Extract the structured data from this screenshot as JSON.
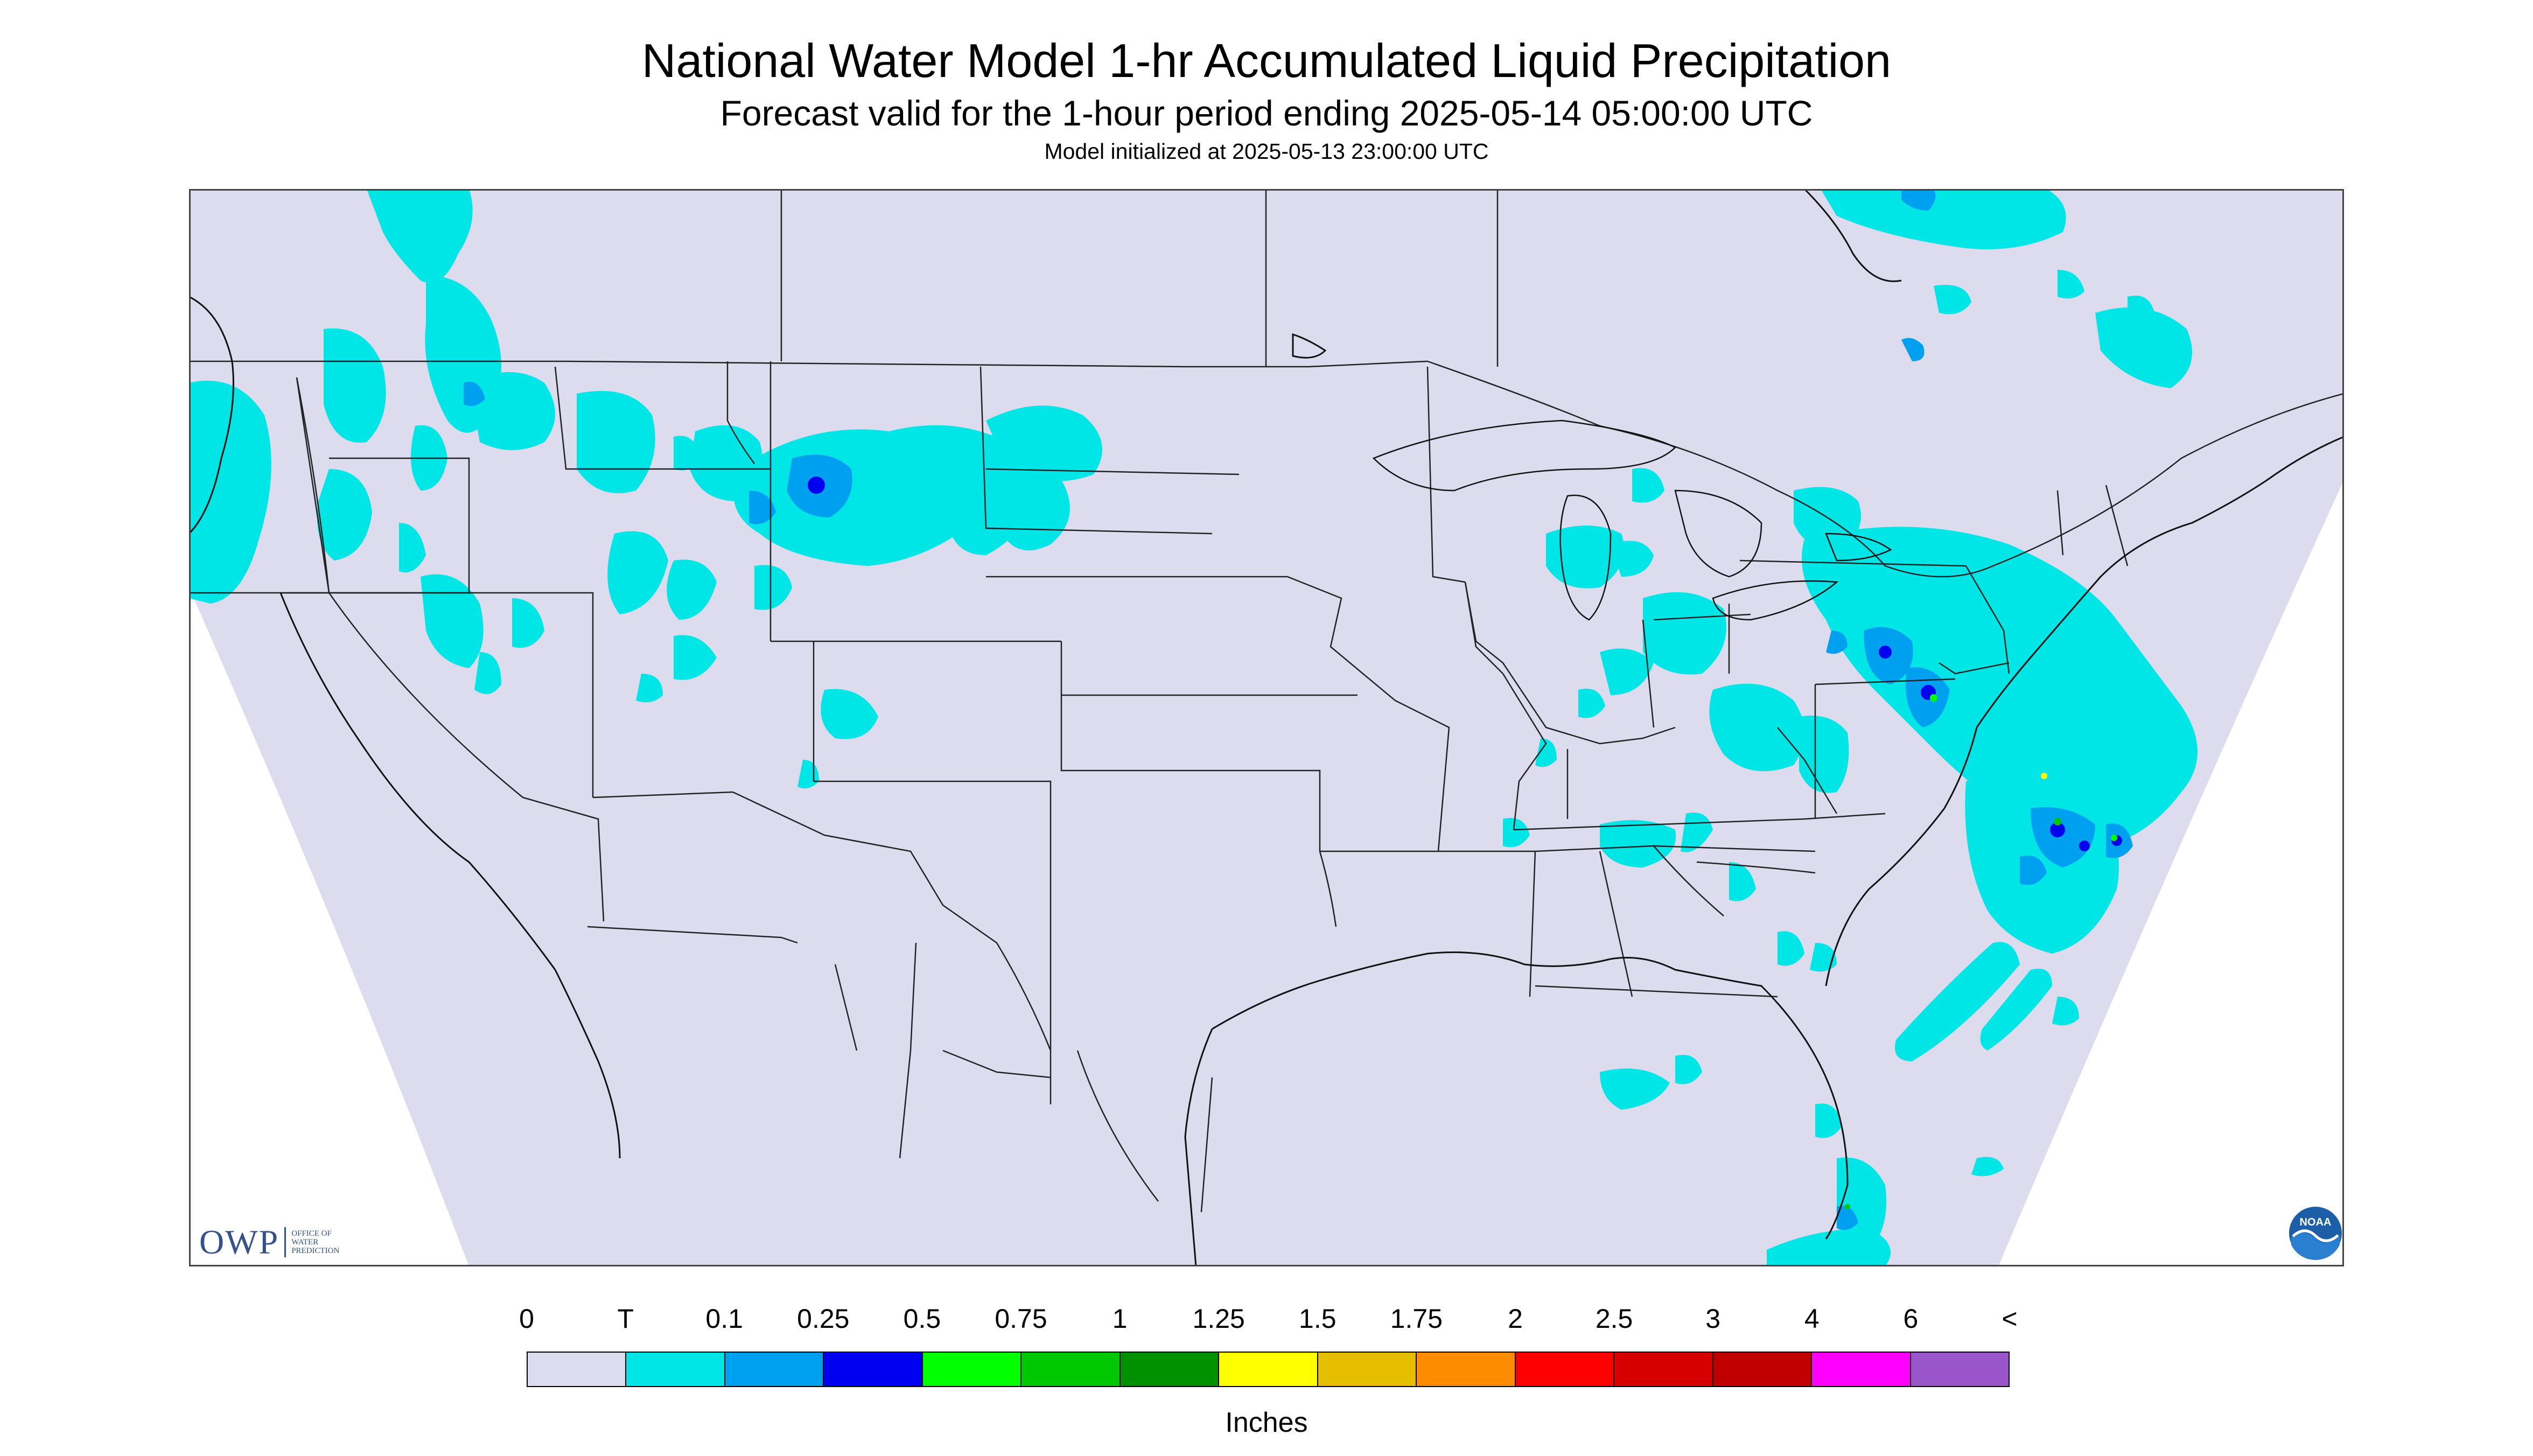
{
  "title": "National Water Model 1-hr Accumulated Liquid Precipitation",
  "subtitle": "Forecast valid for the 1-hour period ending 2025-05-14 05:00:00 UTC",
  "init_line": "Model initialized at 2025-05-13 23:00:00 UTC",
  "legend": {
    "labels": [
      "0",
      "T",
      "0.1",
      "0.25",
      "0.5",
      "0.75",
      "1",
      "1.25",
      "1.5",
      "1.75",
      "2",
      "2.5",
      "3",
      "4",
      "6",
      "<"
    ],
    "colors": [
      "#dcdcee",
      "#00e5e5",
      "#00a0f0",
      "#0000f0",
      "#00ff00",
      "#00c800",
      "#009000",
      "#ffff00",
      "#e6be00",
      "#ff8c00",
      "#ff0000",
      "#d60000",
      "#c00000",
      "#ff00ff",
      "#9955c9"
    ],
    "units": "Inches"
  },
  "logos": {
    "owp_mark": "OWP",
    "owp_text": [
      "OFFICE OF",
      "WATER",
      "PREDICTION"
    ],
    "noaa": "NOAA"
  },
  "map": {
    "background": "#dcdcee",
    "outside_color": "#ffffff",
    "line_color": "#222222"
  }
}
